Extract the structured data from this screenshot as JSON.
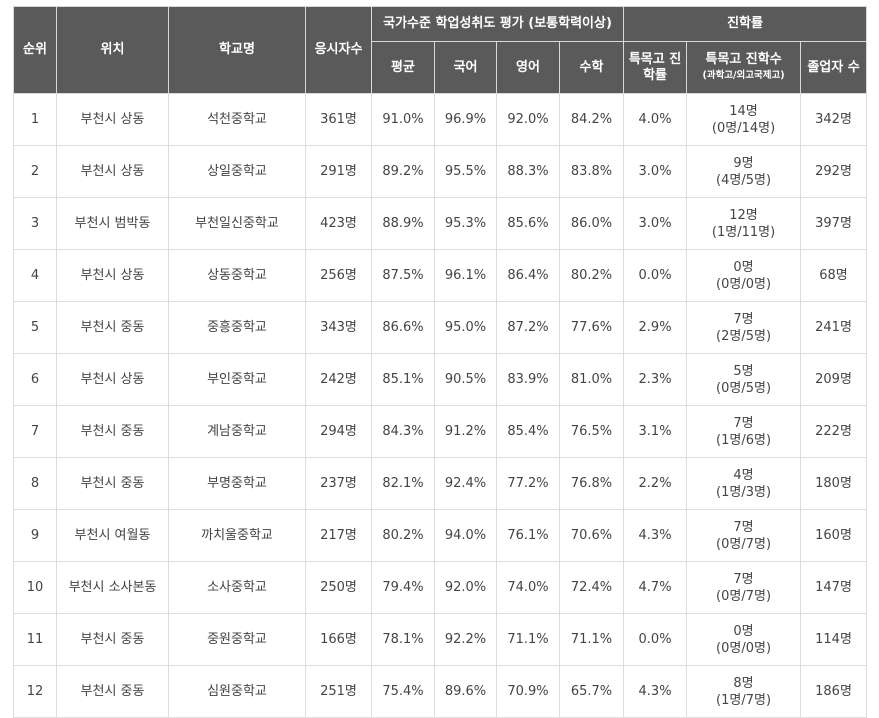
{
  "headers": {
    "rank": "순위",
    "location": "위치",
    "school": "학교명",
    "examinees": "응시자수",
    "national_group": "국가수준 학업성취도 평가 (보통학력이상)",
    "avg": "평균",
    "korean": "국어",
    "english": "영어",
    "math": "수학",
    "advancement_group": "진학률",
    "special_rate": "특목고 진학률",
    "special_count": "특목고 진학수",
    "special_count_note": "(과학고/외고국제고)",
    "graduates": "졸업자 수"
  },
  "rows": [
    {
      "rank": "1",
      "location": "부천시 상동",
      "school": "석천중학교",
      "examinees": "361명",
      "avg": "91.0%",
      "korean": "96.9%",
      "english": "92.0%",
      "math": "84.2%",
      "special_rate": "4.0%",
      "special_count": "14명",
      "special_detail": "(0명/14명)",
      "graduates": "342명"
    },
    {
      "rank": "2",
      "location": "부천시 상동",
      "school": "상일중학교",
      "examinees": "291명",
      "avg": "89.2%",
      "korean": "95.5%",
      "english": "88.3%",
      "math": "83.8%",
      "special_rate": "3.0%",
      "special_count": "9명",
      "special_detail": "(4명/5명)",
      "graduates": "292명"
    },
    {
      "rank": "3",
      "location": "부천시 범박동",
      "school": "부천일신중학교",
      "examinees": "423명",
      "avg": "88.9%",
      "korean": "95.3%",
      "english": "85.6%",
      "math": "86.0%",
      "special_rate": "3.0%",
      "special_count": "12명",
      "special_detail": "(1명/11명)",
      "graduates": "397명"
    },
    {
      "rank": "4",
      "location": "부천시 상동",
      "school": "상동중학교",
      "examinees": "256명",
      "avg": "87.5%",
      "korean": "96.1%",
      "english": "86.4%",
      "math": "80.2%",
      "special_rate": "0.0%",
      "special_count": "0명",
      "special_detail": "(0명/0명)",
      "graduates": "68명"
    },
    {
      "rank": "5",
      "location": "부천시 중동",
      "school": "중흥중학교",
      "examinees": "343명",
      "avg": "86.6%",
      "korean": "95.0%",
      "english": "87.2%",
      "math": "77.6%",
      "special_rate": "2.9%",
      "special_count": "7명",
      "special_detail": "(2명/5명)",
      "graduates": "241명"
    },
    {
      "rank": "6",
      "location": "부천시 상동",
      "school": "부인중학교",
      "examinees": "242명",
      "avg": "85.1%",
      "korean": "90.5%",
      "english": "83.9%",
      "math": "81.0%",
      "special_rate": "2.3%",
      "special_count": "5명",
      "special_detail": "(0명/5명)",
      "graduates": "209명"
    },
    {
      "rank": "7",
      "location": "부천시 중동",
      "school": "계남중학교",
      "examinees": "294명",
      "avg": "84.3%",
      "korean": "91.2%",
      "english": "85.4%",
      "math": "76.5%",
      "special_rate": "3.1%",
      "special_count": "7명",
      "special_detail": "(1명/6명)",
      "graduates": "222명"
    },
    {
      "rank": "8",
      "location": "부천시 중동",
      "school": "부명중학교",
      "examinees": "237명",
      "avg": "82.1%",
      "korean": "92.4%",
      "english": "77.2%",
      "math": "76.8%",
      "special_rate": "2.2%",
      "special_count": "4명",
      "special_detail": "(1명/3명)",
      "graduates": "180명"
    },
    {
      "rank": "9",
      "location": "부천시 여월동",
      "school": "까치울중학교",
      "examinees": "217명",
      "avg": "80.2%",
      "korean": "94.0%",
      "english": "76.1%",
      "math": "70.6%",
      "special_rate": "4.3%",
      "special_count": "7명",
      "special_detail": "(0명/7명)",
      "graduates": "160명"
    },
    {
      "rank": "10",
      "location": "부천시 소사본동",
      "school": "소사중학교",
      "examinees": "250명",
      "avg": "79.4%",
      "korean": "92.0%",
      "english": "74.0%",
      "math": "72.4%",
      "special_rate": "4.7%",
      "special_count": "7명",
      "special_detail": "(0명/7명)",
      "graduates": "147명"
    },
    {
      "rank": "11",
      "location": "부천시 중동",
      "school": "중원중학교",
      "examinees": "166명",
      "avg": "78.1%",
      "korean": "92.2%",
      "english": "71.1%",
      "math": "71.1%",
      "special_rate": "0.0%",
      "special_count": "0명",
      "special_detail": "(0명/0명)",
      "graduates": "114명"
    },
    {
      "rank": "12",
      "location": "부천시 중동",
      "school": "심원중학교",
      "examinees": "251명",
      "avg": "75.4%",
      "korean": "89.6%",
      "english": "70.9%",
      "math": "65.7%",
      "special_rate": "4.3%",
      "special_count": "8명",
      "special_detail": "(1명/7명)",
      "graduates": "186명"
    }
  ]
}
